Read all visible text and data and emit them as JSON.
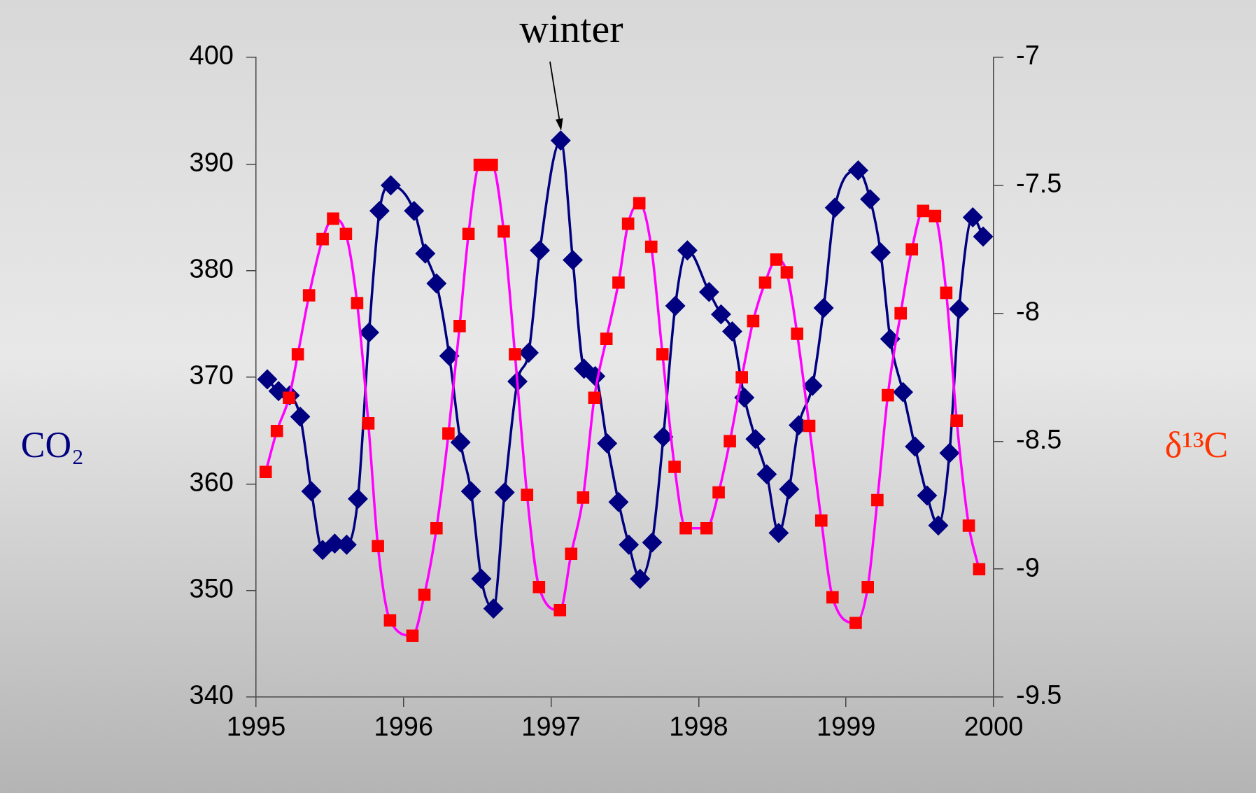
{
  "chart_data": {
    "type": "line",
    "ylabel": "CO₂",
    "y2label": "δ¹³C",
    "xlim": [
      1995,
      2000
    ],
    "xticks": [
      1995,
      1996,
      1997,
      1998,
      1999,
      2000
    ],
    "ylim": [
      340,
      400
    ],
    "yticks": [
      340,
      350,
      360,
      370,
      380,
      390,
      400
    ],
    "y2lim": [
      -9.5,
      -7
    ],
    "y2ticks": [
      -9.5,
      -9,
      -8.5,
      -8,
      -7.5,
      -7
    ],
    "grid": false,
    "legend": false,
    "line_style": "solid",
    "annotations": [
      {
        "text": "winter",
        "x": 1997.07,
        "y": 392.2
      }
    ],
    "series": [
      {
        "color": "#000080",
        "marker": "diamond",
        "x": [
          1995.076,
          1995.152,
          1995.228,
          1995.299,
          1995.375,
          1995.451,
          1995.533,
          1995.614,
          1995.69,
          1995.766,
          1995.837,
          1995.913,
          1996.071,
          1996.147,
          1996.223,
          1996.31,
          1996.386,
          1996.457,
          1996.527,
          1996.609,
          1996.685,
          1996.772,
          1996.848,
          1996.924,
          1997.065,
          1997.147,
          1997.223,
          1997.299,
          1997.38,
          1997.457,
          1997.527,
          1997.603,
          1997.685,
          1997.761,
          1997.842,
          1997.924,
          1998.071,
          1998.152,
          1998.228,
          1998.31,
          1998.386,
          1998.462,
          1998.543,
          1998.614,
          1998.679,
          1998.772,
          1998.848,
          1998.924,
          1999.082,
          1999.163,
          1999.234,
          1999.299,
          1999.386,
          1999.467,
          1999.549,
          1999.625,
          1999.701,
          1999.766,
          1999.859,
          1999.929
        ],
        "values": [
          369.8,
          368.7,
          368.3,
          366.3,
          359.3,
          353.8,
          354.4,
          354.3,
          358.6,
          374.2,
          385.6,
          388.0,
          385.6,
          381.6,
          378.8,
          372.0,
          363.9,
          359.3,
          351.1,
          348.3,
          359.2,
          369.6,
          372.3,
          381.9,
          392.2,
          381.0,
          370.8,
          370.1,
          363.8,
          358.3,
          354.3,
          351.1,
          354.5,
          364.4,
          376.7,
          381.9,
          378.0,
          375.9,
          374.3,
          368.1,
          364.2,
          360.9,
          355.4,
          359.5,
          365.5,
          369.2,
          376.5,
          385.9,
          389.4,
          386.7,
          381.7,
          373.6,
          368.6,
          363.5,
          358.9,
          356.1,
          362.9,
          376.4,
          385.0,
          383.2
        ]
      },
      {
        "color": "#ff0000",
        "marker": "square",
        "axis": "y2",
        "x": [
          1995.065,
          1995.141,
          1995.223,
          1995.283,
          1995.359,
          1995.451,
          1995.522,
          1995.609,
          1995.685,
          1995.761,
          1995.826,
          1995.908,
          1996.06,
          1996.141,
          1996.223,
          1996.304,
          1996.38,
          1996.44,
          1996.516,
          1996.598,
          1996.679,
          1996.755,
          1996.837,
          1996.918,
          1997.06,
          1997.136,
          1997.217,
          1997.293,
          1997.375,
          1997.457,
          1997.522,
          1997.598,
          1997.679,
          1997.755,
          1997.837,
          1997.913,
          1998.054,
          1998.136,
          1998.212,
          1998.293,
          1998.37,
          1998.451,
          1998.527,
          1998.598,
          1998.668,
          1998.75,
          1998.832,
          1998.908,
          1999.065,
          1999.147,
          1999.212,
          1999.283,
          1999.37,
          1999.446,
          1999.522,
          1999.603,
          1999.679,
          1999.75,
          1999.832,
          1999.902
        ],
        "values": [
          -8.62,
          -8.46,
          -8.33,
          -8.16,
          -7.93,
          -7.71,
          -7.63,
          -7.69,
          -7.96,
          -8.43,
          -8.91,
          -9.2,
          -9.26,
          -9.1,
          -8.84,
          -8.47,
          -8.05,
          -7.69,
          -7.42,
          -7.42,
          -7.68,
          -8.16,
          -8.71,
          -9.07,
          -9.16,
          -8.94,
          -8.72,
          -8.33,
          -8.1,
          -7.88,
          -7.65,
          -7.57,
          -7.74,
          -8.16,
          -8.6,
          -8.84,
          -8.84,
          -8.7,
          -8.5,
          -8.25,
          -8.03,
          -7.88,
          -7.79,
          -7.84,
          -8.08,
          -8.44,
          -8.81,
          -9.11,
          -9.21,
          -9.07,
          -8.73,
          -8.32,
          -8,
          -7.75,
          -7.6,
          -7.62,
          -7.92,
          -8.42,
          -8.83,
          -9
        ]
      }
    ]
  }
}
